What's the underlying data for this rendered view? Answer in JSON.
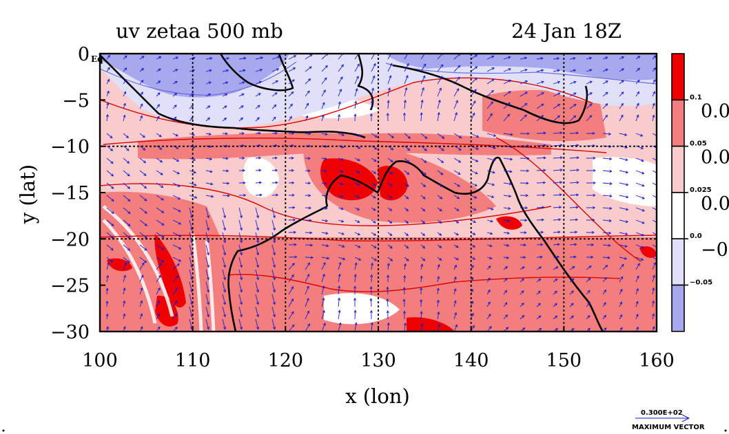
{
  "plot": {
    "title_left": "uv zetaa 500 mb",
    "title_right": "24 Jan 18Z",
    "xlabel": "x (lon)",
    "ylabel": "y (lat)",
    "corner_label": "Eq",
    "x_ticks": [
      "100",
      "110",
      "120",
      "130",
      "140",
      "150",
      "160"
    ],
    "y_ticks": [
      "0",
      "−5",
      "−10",
      "−15",
      "−20",
      "−25",
      "−30"
    ],
    "x_range": [
      100,
      160
    ],
    "y_range": [
      -30,
      0
    ],
    "grid": true
  },
  "colorbar": {
    "colors": [
      "#ee0000",
      "#f27e7e",
      "#f8cccc",
      "#ffffff",
      "#e0e0f8",
      "#a8a8ee"
    ],
    "small_labels": [
      "0.1",
      "0.05",
      "0.025",
      "0.0",
      "−0.05"
    ],
    "large_labels": [
      "0.0",
      "0.0",
      "0.0",
      "−0."
    ]
  },
  "vector_key": {
    "value_label": "0.300E+02",
    "caption": "MAXIMUM VECTOR"
  },
  "colors": {
    "vector": "#1a1acc",
    "coast": "#000000",
    "grid": "#000000"
  }
}
